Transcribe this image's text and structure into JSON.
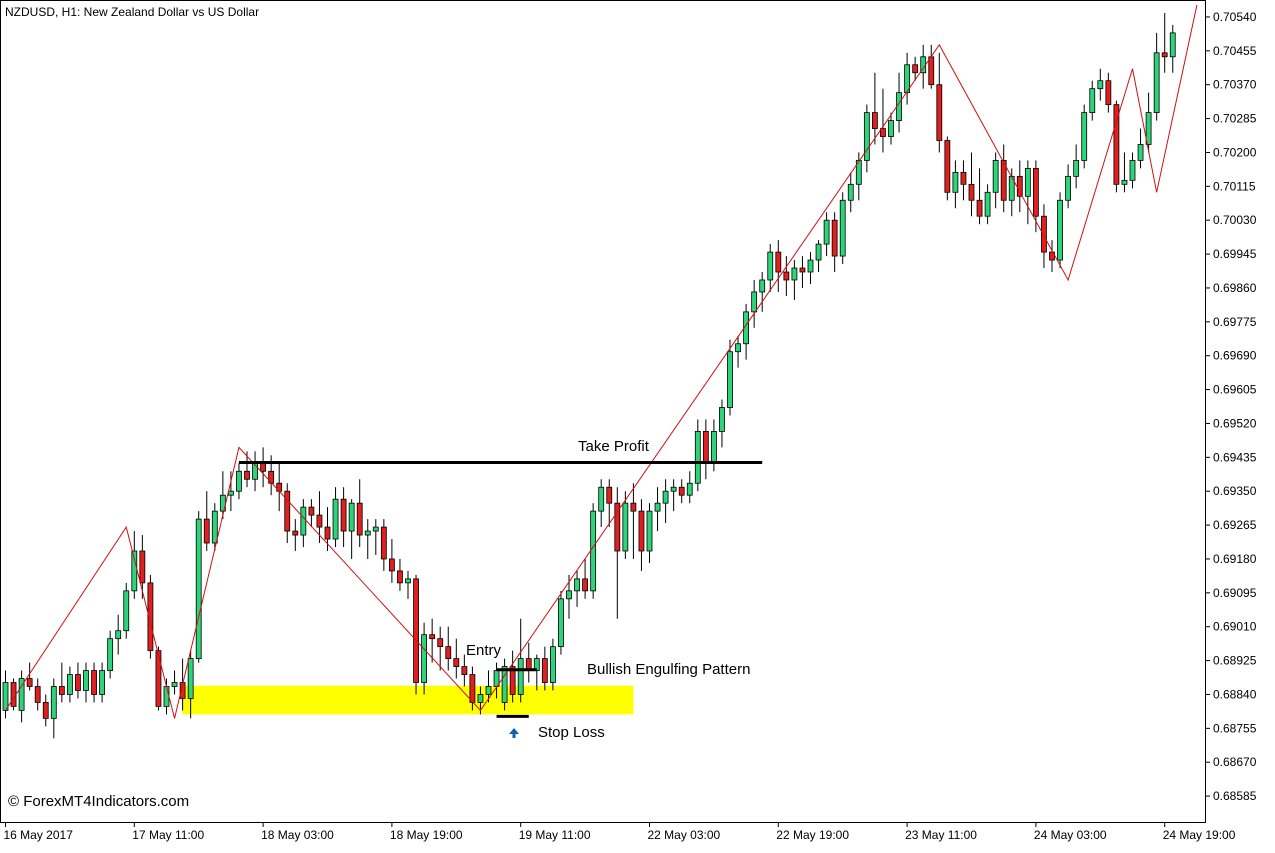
{
  "header": {
    "title": "NZDUSD, H1:  New Zealand Dollar vs US Dollar"
  },
  "watermark": "© ForexMT4Indicators.com",
  "colors": {
    "bull": "#2ed47a",
    "bear": "#e01f1f",
    "wick": "#000000",
    "zigzag": "#d01010",
    "zone": "#ffff00",
    "level": "#000000",
    "arrow": "#1060b0"
  },
  "chart_data": {
    "type": "candlestick",
    "symbol": "NZDUSD",
    "timeframe": "H1",
    "ylim": [
      0.6852,
      0.7058
    ],
    "y_ticks": [
      "0.70540",
      "0.70455",
      "0.70370",
      "0.70285",
      "0.70200",
      "0.70115",
      "0.70030",
      "0.69945",
      "0.69860",
      "0.69775",
      "0.69690",
      "0.69605",
      "0.69520",
      "0.69435",
      "0.69350",
      "0.69265",
      "0.69180",
      "0.69095",
      "0.69010",
      "0.68925",
      "0.68840",
      "0.68755",
      "0.68670",
      "0.68585"
    ],
    "x_ticks": [
      {
        "bar": 0,
        "label": "16 May 2017"
      },
      {
        "bar": 16,
        "label": "17 May 11:00"
      },
      {
        "bar": 32,
        "label": "18 May 03:00"
      },
      {
        "bar": 48,
        "label": "18 May 19:00"
      },
      {
        "bar": 64,
        "label": "19 May 11:00"
      },
      {
        "bar": 80,
        "label": "22 May 03:00"
      },
      {
        "bar": 96,
        "label": "22 May 19:00"
      },
      {
        "bar": 112,
        "label": "23 May 11:00"
      },
      {
        "bar": 128,
        "label": "24 May 03:00"
      },
      {
        "bar": 144,
        "label": "24 May 19:00"
      }
    ],
    "candles": [
      [
        0.688,
        0.689,
        0.6878,
        0.6887
      ],
      [
        0.6887,
        0.6888,
        0.688,
        0.6881
      ],
      [
        0.688,
        0.689,
        0.6877,
        0.6888
      ],
      [
        0.6888,
        0.6892,
        0.6885,
        0.6886
      ],
      [
        0.6886,
        0.6888,
        0.688,
        0.6882
      ],
      [
        0.6882,
        0.6884,
        0.6876,
        0.6878
      ],
      [
        0.6878,
        0.6888,
        0.6873,
        0.6886
      ],
      [
        0.6886,
        0.6892,
        0.6882,
        0.6884
      ],
      [
        0.6884,
        0.6891,
        0.6882,
        0.6889
      ],
      [
        0.6889,
        0.6892,
        0.6883,
        0.6885
      ],
      [
        0.6885,
        0.6892,
        0.6882,
        0.689
      ],
      [
        0.689,
        0.6892,
        0.6882,
        0.6884
      ],
      [
        0.6884,
        0.6892,
        0.6882,
        0.689
      ],
      [
        0.689,
        0.69,
        0.6888,
        0.6898
      ],
      [
        0.6898,
        0.6904,
        0.6894,
        0.69
      ],
      [
        0.69,
        0.6912,
        0.6898,
        0.691
      ],
      [
        0.691,
        0.6925,
        0.6908,
        0.692
      ],
      [
        0.692,
        0.6924,
        0.6908,
        0.6912
      ],
      [
        0.6912,
        0.6914,
        0.6893,
        0.6895
      ],
      [
        0.6895,
        0.6896,
        0.688,
        0.6881
      ],
      [
        0.6881,
        0.6888,
        0.6879,
        0.6886
      ],
      [
        0.6886,
        0.689,
        0.6884,
        0.6887
      ],
      [
        0.6887,
        0.6893,
        0.688,
        0.6883
      ],
      [
        0.6883,
        0.6895,
        0.6878,
        0.6893
      ],
      [
        0.6893,
        0.693,
        0.6892,
        0.6928
      ],
      [
        0.6928,
        0.6935,
        0.692,
        0.6922
      ],
      [
        0.6922,
        0.6932,
        0.692,
        0.693
      ],
      [
        0.693,
        0.694,
        0.6928,
        0.6934
      ],
      [
        0.6934,
        0.694,
        0.693,
        0.6935
      ],
      [
        0.6935,
        0.6942,
        0.6933,
        0.694
      ],
      [
        0.694,
        0.6945,
        0.6936,
        0.6938
      ],
      [
        0.6938,
        0.6945,
        0.6935,
        0.6942
      ],
      [
        0.6942,
        0.6946,
        0.6936,
        0.694
      ],
      [
        0.694,
        0.6944,
        0.6934,
        0.6937
      ],
      [
        0.6937,
        0.6942,
        0.693,
        0.6935
      ],
      [
        0.6935,
        0.6937,
        0.6922,
        0.6925
      ],
      [
        0.6925,
        0.6928,
        0.692,
        0.6924
      ],
      [
        0.6924,
        0.6933,
        0.6921,
        0.6931
      ],
      [
        0.6931,
        0.6933,
        0.6926,
        0.6929
      ],
      [
        0.6929,
        0.6935,
        0.6922,
        0.6926
      ],
      [
        0.6926,
        0.6931,
        0.692,
        0.6923
      ],
      [
        0.6923,
        0.6936,
        0.6921,
        0.6933
      ],
      [
        0.6933,
        0.6936,
        0.6921,
        0.6925
      ],
      [
        0.6925,
        0.6933,
        0.6918,
        0.6932
      ],
      [
        0.6932,
        0.6938,
        0.6921,
        0.6924
      ],
      [
        0.6924,
        0.6928,
        0.6918,
        0.6925
      ],
      [
        0.6925,
        0.6928,
        0.6919,
        0.6926
      ],
      [
        0.6926,
        0.6928,
        0.6915,
        0.6918
      ],
      [
        0.6918,
        0.6923,
        0.6912,
        0.6915
      ],
      [
        0.6915,
        0.6918,
        0.691,
        0.6912
      ],
      [
        0.6912,
        0.6915,
        0.6908,
        0.6913
      ],
      [
        0.6913,
        0.6914,
        0.6884,
        0.6887
      ],
      [
        0.6887,
        0.6902,
        0.6884,
        0.6899
      ],
      [
        0.6899,
        0.6903,
        0.6892,
        0.6898
      ],
      [
        0.6898,
        0.6901,
        0.689,
        0.6896
      ],
      [
        0.6896,
        0.6901,
        0.689,
        0.6893
      ],
      [
        0.6893,
        0.6898,
        0.6888,
        0.6891
      ],
      [
        0.6891,
        0.6894,
        0.6886,
        0.6889
      ],
      [
        0.6889,
        0.6891,
        0.688,
        0.6882
      ],
      [
        0.6882,
        0.6886,
        0.6879,
        0.6884
      ],
      [
        0.6884,
        0.689,
        0.6882,
        0.6886
      ],
      [
        0.6886,
        0.6892,
        0.6883,
        0.689
      ],
      [
        0.6882,
        0.6893,
        0.688,
        0.6891
      ],
      [
        0.6891,
        0.6895,
        0.6882,
        0.6884
      ],
      [
        0.6884,
        0.6903,
        0.6882,
        0.6893
      ],
      [
        0.6893,
        0.6897,
        0.6887,
        0.689
      ],
      [
        0.689,
        0.6894,
        0.6885,
        0.6893
      ],
      [
        0.6893,
        0.6896,
        0.6885,
        0.6887
      ],
      [
        0.6887,
        0.6898,
        0.6885,
        0.6896
      ],
      [
        0.6896,
        0.691,
        0.6894,
        0.6908
      ],
      [
        0.6908,
        0.6914,
        0.6903,
        0.691
      ],
      [
        0.691,
        0.6915,
        0.6906,
        0.6913
      ],
      [
        0.6913,
        0.6918,
        0.6908,
        0.691
      ],
      [
        0.691,
        0.6932,
        0.6908,
        0.693
      ],
      [
        0.693,
        0.6938,
        0.6926,
        0.6936
      ],
      [
        0.6936,
        0.6938,
        0.6926,
        0.6932
      ],
      [
        0.6932,
        0.6936,
        0.6903,
        0.692
      ],
      [
        0.692,
        0.6935,
        0.6918,
        0.6932
      ],
      [
        0.6932,
        0.6937,
        0.6918,
        0.693
      ],
      [
        0.693,
        0.6933,
        0.6915,
        0.692
      ],
      [
        0.692,
        0.6932,
        0.6917,
        0.693
      ],
      [
        0.693,
        0.6936,
        0.6925,
        0.6932
      ],
      [
        0.6932,
        0.6938,
        0.6927,
        0.6935
      ],
      [
        0.6935,
        0.6938,
        0.693,
        0.6936
      ],
      [
        0.6936,
        0.6938,
        0.6932,
        0.6934
      ],
      [
        0.6934,
        0.694,
        0.6932,
        0.6937
      ],
      [
        0.6937,
        0.6953,
        0.6935,
        0.695
      ],
      [
        0.695,
        0.6953,
        0.6938,
        0.6942
      ],
      [
        0.6942,
        0.6953,
        0.694,
        0.695
      ],
      [
        0.695,
        0.6958,
        0.6946,
        0.6956
      ],
      [
        0.6956,
        0.6973,
        0.6954,
        0.697
      ],
      [
        0.697,
        0.6974,
        0.6966,
        0.6972
      ],
      [
        0.6972,
        0.6982,
        0.6968,
        0.698
      ],
      [
        0.698,
        0.6988,
        0.6976,
        0.6985
      ],
      [
        0.6985,
        0.699,
        0.698,
        0.6988
      ],
      [
        0.6988,
        0.6997,
        0.6985,
        0.6995
      ],
      [
        0.6995,
        0.6998,
        0.6985,
        0.699
      ],
      [
        0.699,
        0.6994,
        0.6984,
        0.6988
      ],
      [
        0.6988,
        0.6993,
        0.6983,
        0.6991
      ],
      [
        0.6991,
        0.6994,
        0.6986,
        0.699
      ],
      [
        0.699,
        0.6995,
        0.6987,
        0.6993
      ],
      [
        0.6993,
        0.6998,
        0.699,
        0.6997
      ],
      [
        0.6997,
        0.7005,
        0.6994,
        0.7003
      ],
      [
        0.7003,
        0.7005,
        0.699,
        0.6994
      ],
      [
        0.6994,
        0.701,
        0.6992,
        0.7008
      ],
      [
        0.7008,
        0.7015,
        0.7005,
        0.7012
      ],
      [
        0.7012,
        0.702,
        0.7008,
        0.7018
      ],
      [
        0.7018,
        0.7032,
        0.7015,
        0.703
      ],
      [
        0.703,
        0.704,
        0.7022,
        0.7026
      ],
      [
        0.7026,
        0.7036,
        0.702,
        0.7024
      ],
      [
        0.7024,
        0.703,
        0.7022,
        0.7028
      ],
      [
        0.7028,
        0.704,
        0.7025,
        0.7035
      ],
      [
        0.7035,
        0.7045,
        0.7032,
        0.7042
      ],
      [
        0.7042,
        0.7044,
        0.7038,
        0.704
      ],
      [
        0.704,
        0.7047,
        0.7036,
        0.7044
      ],
      [
        0.7044,
        0.7047,
        0.7036,
        0.7037
      ],
      [
        0.7037,
        0.7045,
        0.702,
        0.7023
      ],
      [
        0.7023,
        0.7024,
        0.7008,
        0.701
      ],
      [
        0.701,
        0.7018,
        0.7006,
        0.7015
      ],
      [
        0.7015,
        0.7018,
        0.7008,
        0.7012
      ],
      [
        0.7012,
        0.702,
        0.7004,
        0.7008
      ],
      [
        0.7008,
        0.7016,
        0.7002,
        0.7004
      ],
      [
        0.7004,
        0.7012,
        0.7002,
        0.701
      ],
      [
        0.701,
        0.702,
        0.7006,
        0.7018
      ],
      [
        0.7018,
        0.7022,
        0.7005,
        0.7008
      ],
      [
        0.7008,
        0.7016,
        0.7004,
        0.7014
      ],
      [
        0.7014,
        0.7018,
        0.7005,
        0.7009
      ],
      [
        0.7009,
        0.7018,
        0.7002,
        0.7016
      ],
      [
        0.7016,
        0.7018,
        0.7,
        0.7004
      ],
      [
        0.7004,
        0.7007,
        0.6991,
        0.6995
      ],
      [
        0.6995,
        0.6998,
        0.699,
        0.6993
      ],
      [
        0.6993,
        0.701,
        0.6991,
        0.7008
      ],
      [
        0.7008,
        0.7017,
        0.7006,
        0.7014
      ],
      [
        0.7014,
        0.7022,
        0.7011,
        0.7018
      ],
      [
        0.7018,
        0.7032,
        0.7016,
        0.703
      ],
      [
        0.703,
        0.7038,
        0.7028,
        0.7036
      ],
      [
        0.7036,
        0.7041,
        0.7033,
        0.7038
      ],
      [
        0.7038,
        0.704,
        0.703,
        0.7032
      ],
      [
        0.7032,
        0.7033,
        0.701,
        0.7012
      ],
      [
        0.7012,
        0.702,
        0.701,
        0.7013
      ],
      [
        0.7013,
        0.702,
        0.7011,
        0.7018
      ],
      [
        0.7018,
        0.7026,
        0.7016,
        0.7022
      ],
      [
        0.7022,
        0.7035,
        0.702,
        0.703
      ],
      [
        0.703,
        0.705,
        0.7028,
        0.7045
      ],
      [
        0.7045,
        0.7055,
        0.704,
        0.7044
      ],
      [
        0.7044,
        0.7052,
        0.704,
        0.705
      ]
    ],
    "zigzag": [
      {
        "bar": 0,
        "price": 0.688
      },
      {
        "bar": 15,
        "price": 0.6926
      },
      {
        "bar": 21,
        "price": 0.6878
      },
      {
        "bar": 29,
        "price": 0.6946
      },
      {
        "bar": 59,
        "price": 0.688
      },
      {
        "bar": 116,
        "price": 0.7047
      },
      {
        "bar": 132,
        "price": 0.6988
      },
      {
        "bar": 140,
        "price": 0.7041
      },
      {
        "bar": 143,
        "price": 0.701
      },
      {
        "bar": 148,
        "price": 0.7057
      }
    ],
    "annotations": {
      "take_profit": {
        "label": "Take Profit",
        "price": 0.69422,
        "from_bar": 29,
        "to_bar": 94
      },
      "entry": {
        "label": "Entry",
        "price": 0.68902,
        "from_bar": 61,
        "to_bar": 66
      },
      "stop_loss": {
        "label": "Stop Loss",
        "price": 0.68785,
        "from_bar": 61,
        "to_bar": 65
      },
      "pattern": {
        "label": "Bullish Engulfing Pattern"
      },
      "zone": {
        "price_low": 0.6879,
        "price_high": 0.68862,
        "from_bar": 22,
        "to_bar": 78
      }
    }
  }
}
